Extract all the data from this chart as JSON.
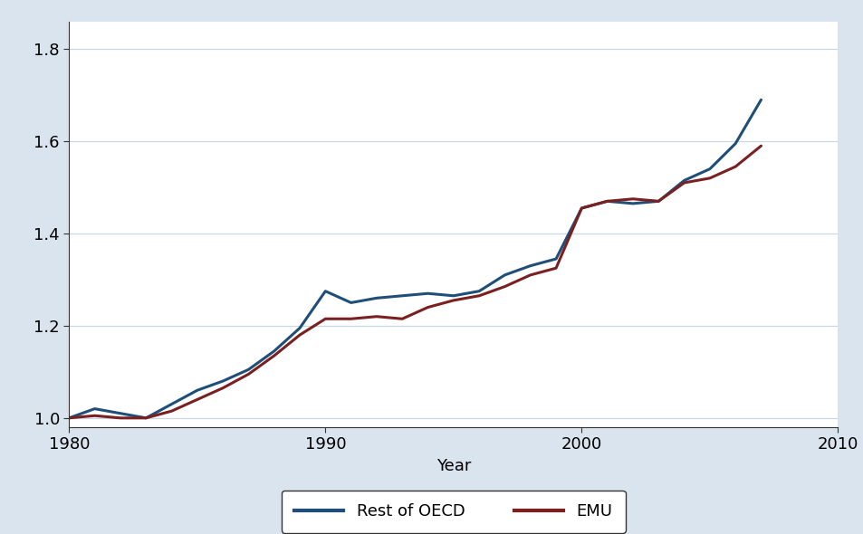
{
  "title": "",
  "xlabel": "Year",
  "ylabel": "",
  "background_color": "#d9e4ee",
  "plot_bg_color": "#ffffff",
  "xlim": [
    1980,
    2010
  ],
  "ylim": [
    0.98,
    1.86
  ],
  "yticks": [
    1.0,
    1.2,
    1.4,
    1.6,
    1.8
  ],
  "xticks": [
    1980,
    1990,
    2000,
    2010
  ],
  "rest_of_oecd_color": "#1f4e79",
  "emu_color": "#7b2020",
  "line_width": 2.2,
  "years": [
    1980,
    1981,
    1982,
    1983,
    1984,
    1985,
    1986,
    1987,
    1988,
    1989,
    1990,
    1991,
    1992,
    1993,
    1994,
    1995,
    1996,
    1997,
    1998,
    1999,
    2000,
    2001,
    2002,
    2003,
    2004,
    2005,
    2006,
    2007
  ],
  "rest_of_oecd": [
    1.0,
    1.02,
    1.01,
    1.0,
    1.03,
    1.06,
    1.08,
    1.105,
    1.145,
    1.195,
    1.275,
    1.25,
    1.26,
    1.265,
    1.27,
    1.265,
    1.275,
    1.31,
    1.33,
    1.345,
    1.455,
    1.47,
    1.465,
    1.47,
    1.515,
    1.54,
    1.595,
    1.69
  ],
  "emu": [
    1.0,
    1.005,
    1.0,
    1.0,
    1.015,
    1.04,
    1.065,
    1.095,
    1.135,
    1.18,
    1.215,
    1.215,
    1.22,
    1.215,
    1.24,
    1.255,
    1.265,
    1.285,
    1.31,
    1.325,
    1.455,
    1.47,
    1.475,
    1.47,
    1.51,
    1.52,
    1.545,
    1.59
  ],
  "legend_labels": [
    "Rest of OECD",
    "EMU"
  ],
  "legend_fontsize": 13,
  "tick_fontsize": 13,
  "xlabel_fontsize": 13,
  "grid_color": "#c8d8e8",
  "spine_color": "#333333"
}
